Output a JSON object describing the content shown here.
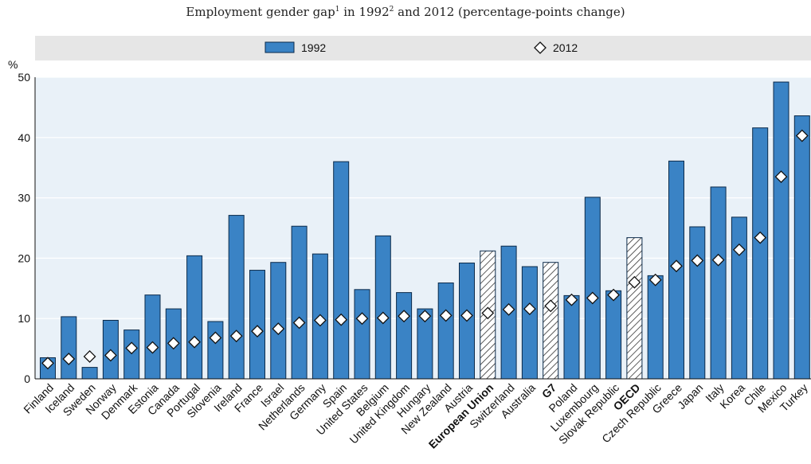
{
  "subtitle": {
    "main": "Employment gender gap",
    "sup1": "1",
    "mid": " in 1992",
    "sup2": "2",
    "end": " and 2012 (percentage-points change)"
  },
  "colors": {
    "bar": "#3a83c5",
    "bar_stroke": "#0b2a4a",
    "plot_bg": "#e9f1f8",
    "legend_bg": "#e6e6e6",
    "hatch": "#333333"
  },
  "chart_data": {
    "type": "bar",
    "ylabel": "%",
    "ylim": [
      0,
      50
    ],
    "yticks": [
      0,
      10,
      20,
      30,
      40,
      50
    ],
    "grid": true,
    "legend_position": "top",
    "categories": [
      "Finland",
      "Iceland",
      "Sweden",
      "Norway",
      "Denmark",
      "Estonia",
      "Canada",
      "Portugal",
      "Slovenia",
      "Ireland",
      "France",
      "Israel",
      "Netherlands",
      "Germany",
      "Spain",
      "United States",
      "Belgium",
      "United Kingdom",
      "Hungary",
      "New Zealand",
      "Austria",
      "European Union",
      "Switzerland",
      "Australia",
      "G7",
      "Poland",
      "Luxembourg",
      "Slovak Republic",
      "OECD",
      "Czech Republic",
      "Greece",
      "Japan",
      "Italy",
      "Korea",
      "Chile",
      "Mexico",
      "Turkey"
    ],
    "aggregates": [
      "European Union",
      "G7",
      "OECD"
    ],
    "series": [
      {
        "name": "1992",
        "marker": "bar",
        "values": [
          3.5,
          10.3,
          1.9,
          9.7,
          8.1,
          13.9,
          11.6,
          20.4,
          9.5,
          27.1,
          18.0,
          19.3,
          25.3,
          20.7,
          36.0,
          14.8,
          23.7,
          14.3,
          11.6,
          15.9,
          19.2,
          21.2,
          22.0,
          18.6,
          19.3,
          13.8,
          30.1,
          14.6,
          23.4,
          17.1,
          36.1,
          25.2,
          31.8,
          26.8,
          41.6,
          49.2,
          43.6
        ]
      },
      {
        "name": "2012",
        "marker": "diamond",
        "values": [
          2.6,
          3.3,
          3.7,
          3.9,
          5.1,
          5.2,
          5.9,
          6.1,
          6.8,
          7.1,
          7.9,
          8.3,
          9.3,
          9.7,
          9.8,
          10.0,
          10.1,
          10.4,
          10.4,
          10.5,
          10.5,
          10.9,
          11.5,
          11.6,
          12.1,
          13.1,
          13.4,
          13.9,
          16.0,
          16.4,
          18.7,
          19.6,
          19.7,
          21.4,
          23.4,
          33.5,
          40.3
        ]
      }
    ]
  }
}
